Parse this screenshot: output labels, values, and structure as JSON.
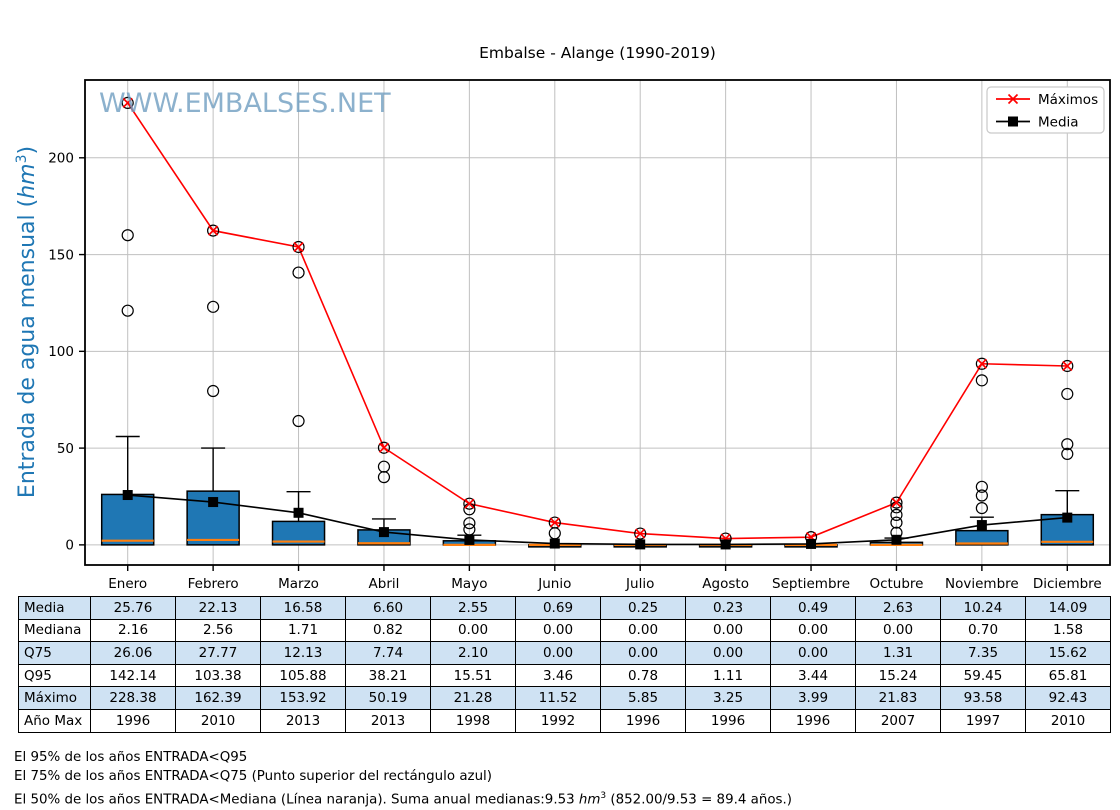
{
  "chart_data": {
    "type": "boxplot",
    "title": "Embalse - Alange (1990-2019)",
    "watermark": "WWW.EMBALSES.NET",
    "ylabel": "Entrada de agua mensual (hm³)",
    "ylabel_parts": {
      "pre": "Entrada de agua mensual (",
      "unit": "hm",
      "sup": "3",
      "post": ")"
    },
    "categories": [
      "Enero",
      "Febrero",
      "Marzo",
      "Abril",
      "Mayo",
      "Junio",
      "Julio",
      "Agosto",
      "Septiembre",
      "Octubre",
      "Noviembre",
      "Diciembre"
    ],
    "ylim": [
      -10.4,
      240.2
    ],
    "yticks": [
      0,
      50,
      100,
      150,
      200
    ],
    "grid": true,
    "legend_position": "upper right",
    "legend": [
      {
        "label": "Máximos",
        "color": "#ff0000",
        "marker": "x-cross"
      },
      {
        "label": "Media",
        "color": "#000000",
        "marker": "filled-square"
      }
    ],
    "series": [
      {
        "name": "Máximos",
        "color": "#ff0000",
        "marker": "x-cross",
        "values": [
          228.38,
          162.39,
          153.92,
          50.19,
          21.28,
          11.52,
          5.85,
          3.25,
          3.99,
          21.83,
          93.58,
          92.43
        ]
      },
      {
        "name": "Media",
        "color": "#000000",
        "marker": "filled-square",
        "values": [
          25.76,
          22.13,
          16.58,
          6.6,
          2.55,
          0.69,
          0.25,
          0.23,
          0.49,
          2.63,
          10.24,
          14.09
        ]
      }
    ],
    "boxplot": {
      "q1": [
        0,
        0,
        0,
        0,
        0,
        0,
        0,
        0,
        0,
        0,
        0,
        0
      ],
      "median": [
        2.16,
        2.56,
        1.71,
        0.82,
        0,
        0,
        0,
        0,
        0,
        0,
        0.7,
        1.58
      ],
      "q3": [
        26.06,
        27.77,
        12.13,
        7.74,
        2.1,
        0,
        0,
        0,
        0,
        1.31,
        7.35,
        15.62
      ],
      "whisker_high": [
        56,
        50,
        27.5,
        13.4,
        5,
        0,
        0,
        0,
        0,
        3.5,
        14.3,
        28
      ],
      "whisker_low": [
        0,
        0,
        0,
        0,
        0,
        0,
        0,
        0,
        0,
        0,
        0,
        0
      ],
      "outliers": [
        [
          228.38,
          160,
          121
        ],
        [
          162.39,
          123,
          79.5
        ],
        [
          153.92,
          140.7,
          64
        ],
        [
          50.19,
          40.4,
          35
        ],
        [
          21.28,
          18.4,
          11.2,
          8
        ],
        [
          11.52,
          6
        ],
        [
          5.85
        ],
        [
          3.25
        ],
        [
          3.99
        ],
        [
          21.83,
          19.4,
          15.5,
          11.5,
          6.3
        ],
        [
          93.58,
          85,
          30,
          25.5,
          19
        ],
        [
          92.43,
          78,
          52,
          47
        ]
      ]
    },
    "colors": {
      "box_fill": "#1f77b4",
      "median_line": "#ff7f0e",
      "grid": "#c0c0c0",
      "watermark": "#6f9ec0",
      "axis_label": "#1f77b4"
    }
  },
  "table": {
    "highlight_color": "#cfe2f3",
    "rows": [
      {
        "label": "Media",
        "values": [
          "25.76",
          "22.13",
          "16.58",
          "6.60",
          "2.55",
          "0.69",
          "0.25",
          "0.23",
          "0.49",
          "2.63",
          "10.24",
          "14.09"
        ]
      },
      {
        "label": "Mediana",
        "values": [
          "2.16",
          "2.56",
          "1.71",
          "0.82",
          "0.00",
          "0.00",
          "0.00",
          "0.00",
          "0.00",
          "0.00",
          "0.70",
          "1.58"
        ]
      },
      {
        "label": "Q75",
        "values": [
          "26.06",
          "27.77",
          "12.13",
          "7.74",
          "2.10",
          "0.00",
          "0.00",
          "0.00",
          "0.00",
          "1.31",
          "7.35",
          "15.62"
        ]
      },
      {
        "label": "Q95",
        "values": [
          "142.14",
          "103.38",
          "105.88",
          "38.21",
          "15.51",
          "3.46",
          "0.78",
          "1.11",
          "3.44",
          "15.24",
          "59.45",
          "65.81"
        ]
      },
      {
        "label": "Máximo",
        "values": [
          "228.38",
          "162.39",
          "153.92",
          "50.19",
          "21.28",
          "11.52",
          "5.85",
          "3.25",
          "3.99",
          "21.83",
          "93.58",
          "92.43"
        ]
      },
      {
        "label": "Año Max",
        "values": [
          "1996",
          "2010",
          "2013",
          "2013",
          "1998",
          "1992",
          "1996",
          "1996",
          "1996",
          "2007",
          "1997",
          "2010"
        ]
      }
    ]
  },
  "footer": {
    "line1": "El 95% de los años ENTRADA<Q95",
    "line2": "El 75% de los años ENTRADA<Q75 (Punto superior del rectángulo azul)",
    "line3_pre": "El 50% de los años ENTRADA<Mediana (Línea naranja). Suma anual medianas:9.53 ",
    "line3_unit": "hm",
    "line3_sup": "3",
    "line3_post": " (852.00/9.53 = 89.4 años.)"
  }
}
